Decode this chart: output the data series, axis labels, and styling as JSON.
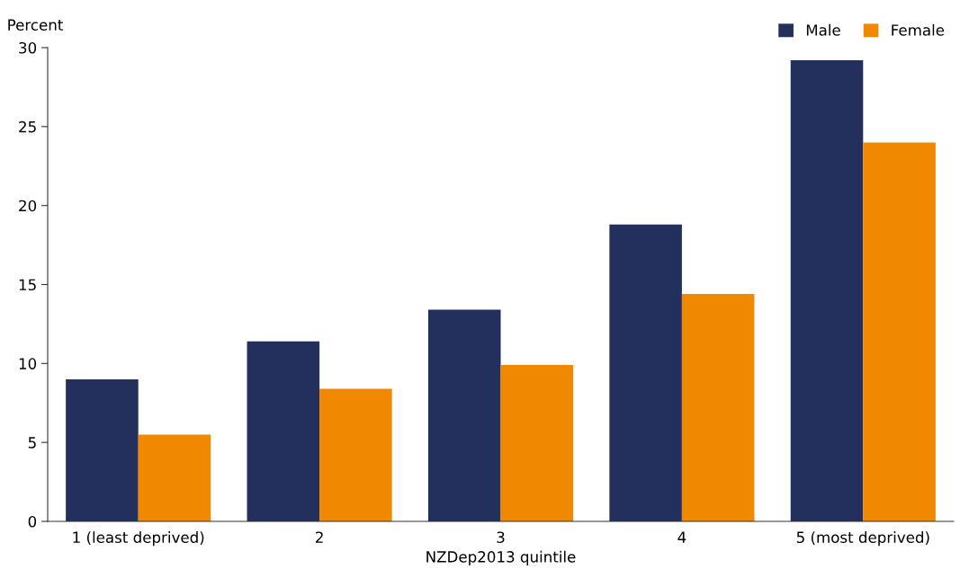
{
  "chart_data": {
    "type": "bar",
    "xlabel": "NZDep2013 quintile",
    "ylabel": "Percent",
    "categories": [
      "1 (least deprived)",
      "2",
      "3",
      "4",
      "5 (most deprived)"
    ],
    "series": [
      {
        "name": "Male",
        "color": "#232f5c",
        "values": [
          9.0,
          11.4,
          13.4,
          18.8,
          29.2
        ]
      },
      {
        "name": "Female",
        "color": "#f08800",
        "values": [
          5.5,
          8.4,
          9.9,
          14.4,
          24.0
        ]
      }
    ],
    "ylim": [
      0,
      30
    ],
    "yticks": [
      0,
      5,
      10,
      15,
      20,
      25,
      30
    ],
    "grid": false,
    "legend": "top right"
  }
}
